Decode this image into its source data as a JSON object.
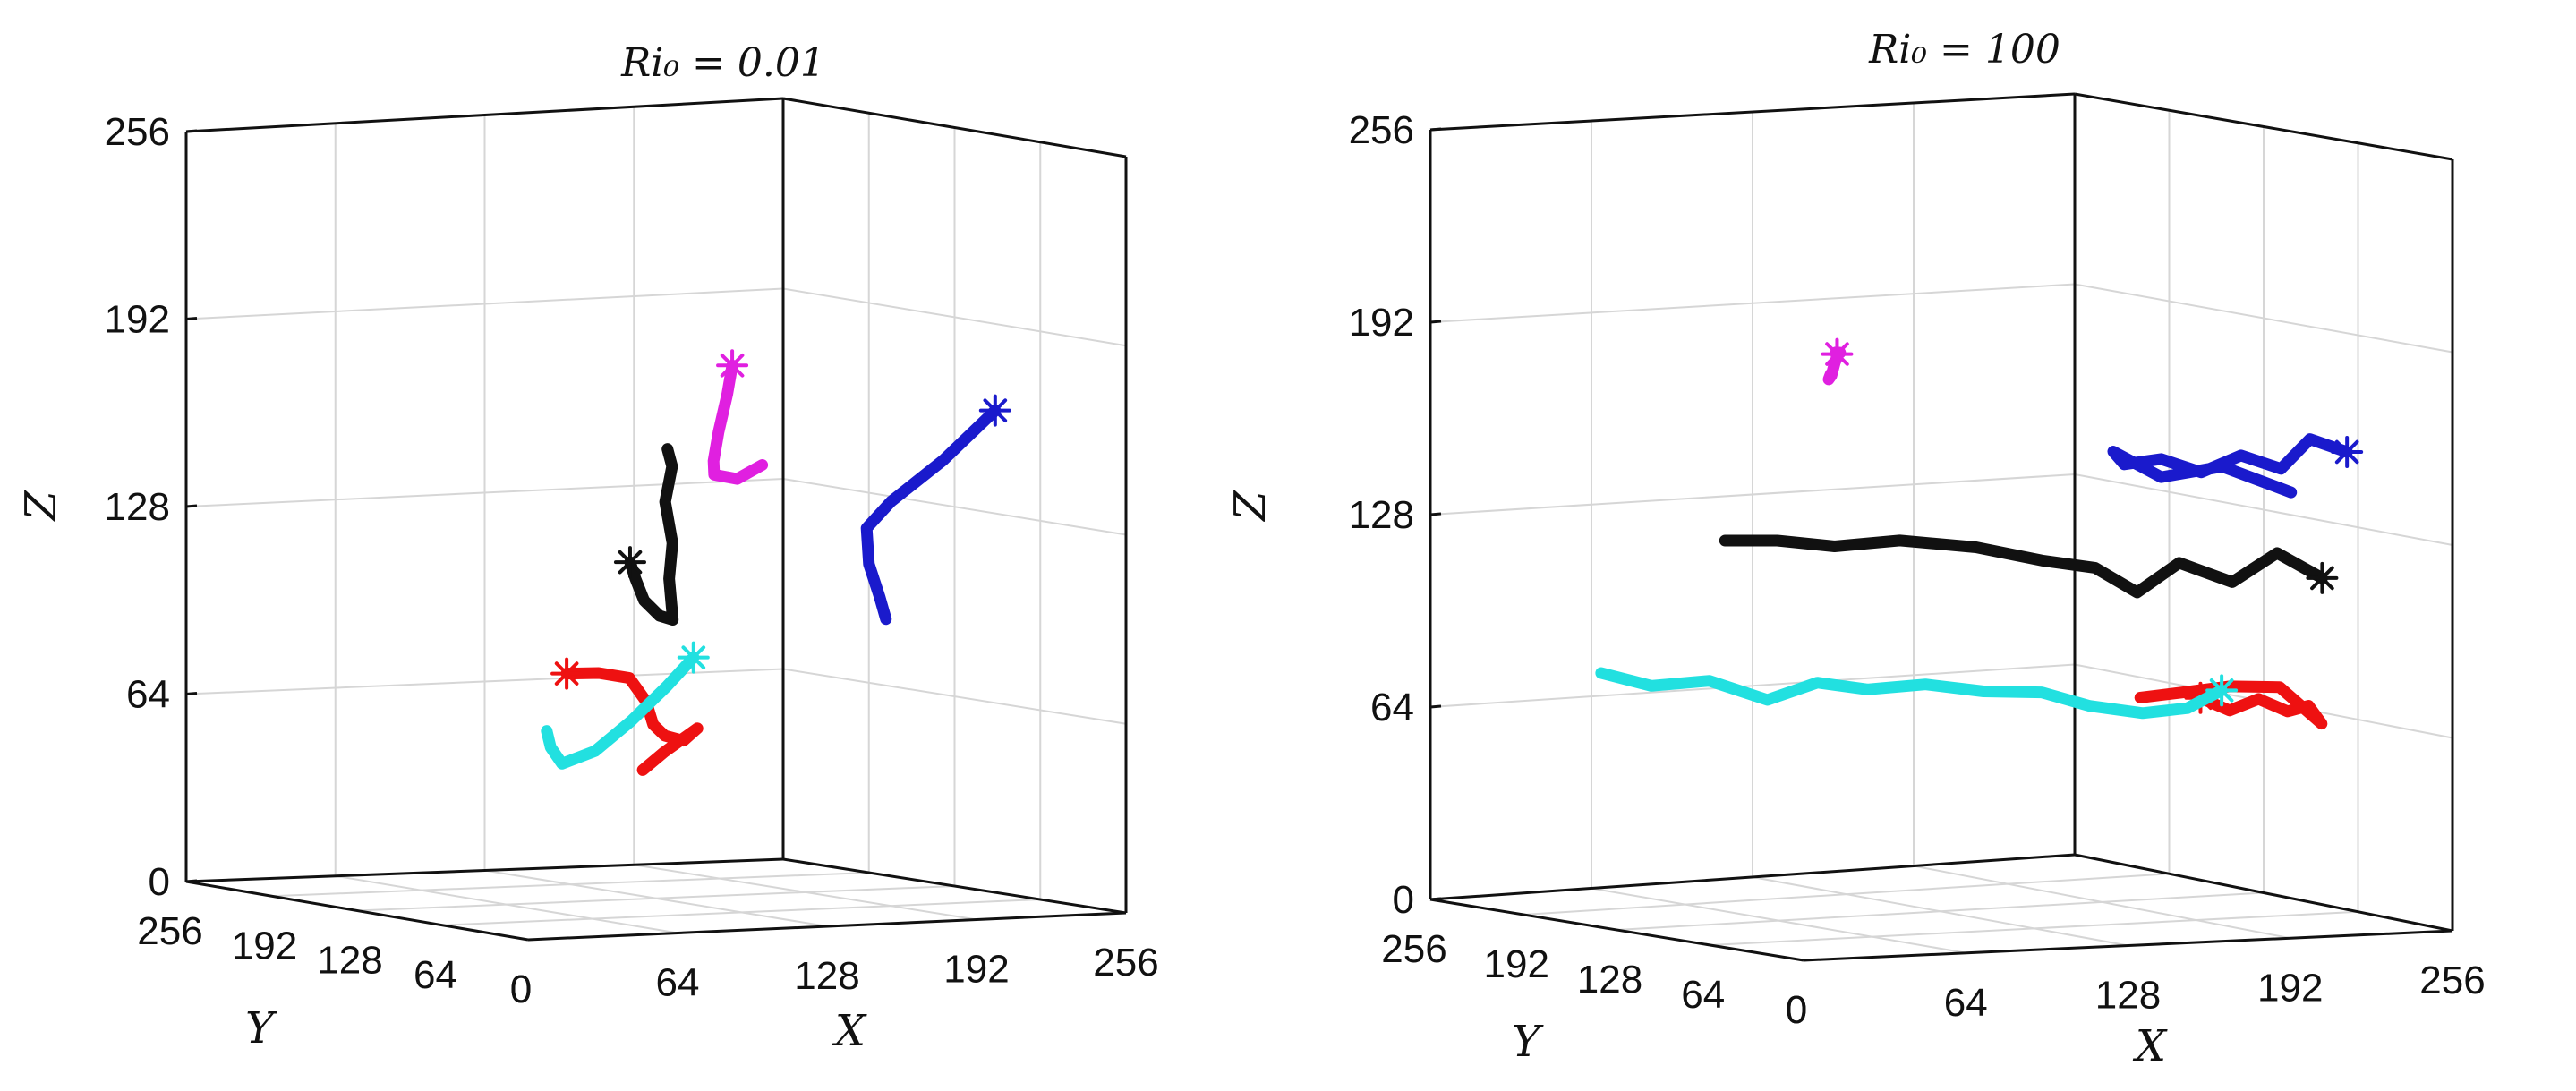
{
  "chart_data": [
    {
      "type": "line3d",
      "title": "Ri_0 = 0.01",
      "title_display": "Ri₀ = 0.01",
      "xlabel": "X",
      "ylabel": "Y",
      "zlabel": "Z",
      "xlim": [
        0,
        256
      ],
      "ylim": [
        0,
        256
      ],
      "zlim": [
        0,
        256
      ],
      "x_ticks": [
        "0",
        "64",
        "128",
        "192",
        "256"
      ],
      "y_ticks": [
        "256",
        "192",
        "128",
        "64",
        "0"
      ],
      "z_ticks": [
        "0",
        "64",
        "128",
        "192",
        "256"
      ],
      "grid": true,
      "series": [
        {
          "color": "#e020e0",
          "start": [
            116,
            50,
            188
          ],
          "points": [
            [
              116,
              50,
              188
            ],
            [
              115,
              52,
              178
            ],
            [
              113,
              55,
              165
            ],
            [
              112,
              57,
              155
            ],
            [
              114,
              60,
              150
            ],
            [
              125,
              62,
              148
            ],
            [
              138,
              66,
              152
            ]
          ]
        },
        {
          "color": "#111111",
          "start": [
            98,
            95,
            118
          ],
          "points": [
            [
              98,
              95,
              118
            ],
            [
              102,
              98,
              112
            ],
            [
              108,
              102,
              104
            ],
            [
              118,
              108,
              98
            ],
            [
              126,
              112,
              96
            ],
            [
              125,
              113,
              110
            ],
            [
              127,
              114,
              122
            ],
            [
              125,
              116,
              136
            ],
            [
              128,
              116,
              148
            ],
            [
              126,
              116,
              154
            ]
          ]
        },
        {
          "color": "#1a1acc",
          "start": [
            232,
            56,
            168
          ],
          "points": [
            [
              232,
              56,
              168
            ],
            [
              220,
              74,
              150
            ],
            [
              208,
              92,
              135
            ],
            [
              205,
              105,
              125
            ],
            [
              210,
              112,
              112
            ],
            [
              218,
              118,
              100
            ],
            [
              223,
              122,
              92
            ]
          ]
        },
        {
          "color": "#ee1111",
          "start": [
            88,
            125,
            78
          ],
          "points": [
            [
              88,
              125,
              78
            ],
            [
              100,
              122,
              78
            ],
            [
              112,
              120,
              76
            ],
            [
              118,
              118,
              68
            ],
            [
              121,
              118,
              60
            ],
            [
              126,
              118,
              56
            ],
            [
              134,
              118,
              54
            ],
            [
              140,
              118,
              58
            ],
            [
              128,
              122,
              50
            ],
            [
              120,
              124,
              44
            ]
          ]
        },
        {
          "color": "#22e0e0",
          "start": [
            128,
            100,
            84
          ],
          "points": [
            [
              128,
              100,
              84
            ],
            [
              120,
              106,
              74
            ],
            [
              108,
              112,
              62
            ],
            [
              95,
              116,
              52
            ],
            [
              82,
              118,
              48
            ],
            [
              76,
              116,
              54
            ],
            [
              72,
              112,
              60
            ]
          ]
        }
      ]
    },
    {
      "type": "line3d",
      "title": "Ri_0 = 100",
      "title_display": "Ri₀ = 100",
      "xlabel": "X",
      "ylabel": "Y",
      "zlabel": "Z",
      "xlim": [
        0,
        256
      ],
      "ylim": [
        0,
        256
      ],
      "zlim": [
        0,
        256
      ],
      "x_ticks": [
        "0",
        "64",
        "128",
        "192",
        "256"
      ],
      "y_ticks": [
        "256",
        "192",
        "128",
        "64",
        "0"
      ],
      "z_ticks": [
        "0",
        "64",
        "128",
        "192",
        "256"
      ],
      "grid": true,
      "series": [
        {
          "color": "#e020e0",
          "start": [
            88,
            130,
            188
          ],
          "points": [
            [
              88,
              130,
              188
            ],
            [
              80,
              114,
              190
            ],
            [
              68,
              96,
              192
            ],
            [
              58,
              78,
              192
            ],
            [
              48,
              62,
              192
            ],
            [
              34,
              40,
              190
            ],
            [
              26,
              28,
              190
            ],
            [
              82,
              124,
              182
            ]
          ]
        },
        {
          "color": "#1a1acc",
          "start": [
            242,
            48,
            156
          ],
          "points": [
            [
              242,
              48,
              156
            ],
            [
              232,
              56,
              160
            ],
            [
              224,
              62,
              150
            ],
            [
              214,
              72,
              154
            ],
            [
              204,
              82,
              148
            ],
            [
              194,
              92,
              152
            ],
            [
              184,
              100,
              150
            ],
            [
              182,
              104,
              154
            ],
            [
              194,
              92,
              146
            ],
            [
              210,
              78,
              150
            ],
            [
              228,
              62,
              142
            ]
          ]
        },
        {
          "color": "#111111",
          "start": [
            246,
            72,
            112
          ],
          "points": [
            [
              246,
              72,
              112
            ],
            [
              234,
              82,
              120
            ],
            [
              222,
              92,
              110
            ],
            [
              208,
              104,
              116
            ],
            [
              196,
              112,
              106
            ],
            [
              184,
              120,
              114
            ],
            [
              170,
              132,
              116
            ],
            [
              152,
              146,
              120
            ],
            [
              130,
              160,
              122
            ],
            [
              110,
              170,
              120
            ],
            [
              92,
              178,
              122
            ],
            [
              76,
              186,
              122
            ]
          ]
        },
        {
          "color": "#ee1111",
          "start": [
            198,
            72,
            74
          ],
          "points": [
            [
              198,
              72,
              74
            ],
            [
              206,
              66,
              70
            ],
            [
              214,
              60,
              74
            ],
            [
              222,
              54,
              70
            ],
            [
              228,
              50,
              72
            ],
            [
              232,
              48,
              66
            ],
            [
              220,
              56,
              78
            ],
            [
              206,
              66,
              78
            ],
            [
              194,
              74,
              76
            ],
            [
              180,
              82,
              74
            ]
          ]
        },
        {
          "color": "#22e0e0",
          "start": [
            196,
            54,
            78
          ],
          "points": [
            [
              196,
              54,
              78
            ],
            [
              186,
              60,
              72
            ],
            [
              174,
              70,
              70
            ],
            [
              160,
              82,
              72
            ],
            [
              148,
              94,
              76
            ],
            [
              132,
              106,
              76
            ],
            [
              116,
              118,
              78
            ],
            [
              100,
              130,
              76
            ],
            [
              86,
              140,
              78
            ],
            [
              72,
              150,
              72
            ],
            [
              56,
              162,
              78
            ],
            [
              40,
              174,
              76
            ],
            [
              26,
              184,
              80
            ]
          ]
        }
      ]
    }
  ]
}
